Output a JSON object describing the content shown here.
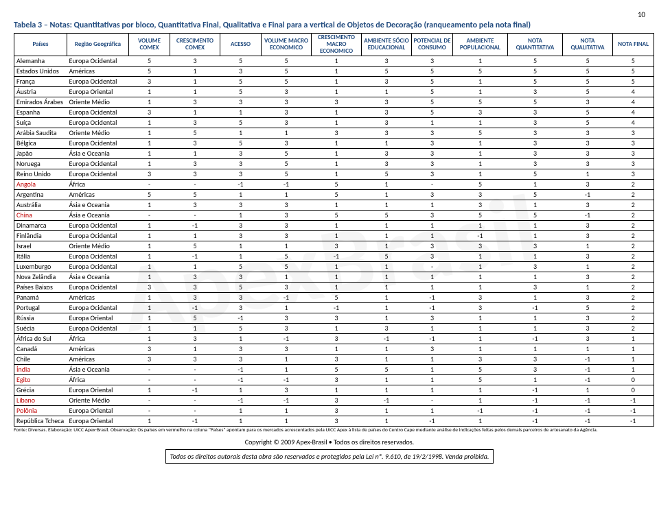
{
  "page_number": "10",
  "title": "Tabela 3 – Notas: Quantitativas por bloco, Quantitativa Final, Qualitativa e Final para a vertical de Objetos de Decoração (ranqueamento pela nota final)",
  "headers": {
    "c0": "Países",
    "c1": "Região Geográfica",
    "c2": "VOLUME COMEX",
    "c3": "CRESCIMENTO COMEX",
    "c4": "ACESSO",
    "c5": "VOLUME MACRO ECONOMICO",
    "c6": "CRESCIMENTO MACRO ECONOMICO",
    "c7": "AMBIENTE SÓCIO EDUCACIONAL",
    "c8": "POTENCIAL DE CONSUMO",
    "c9": "AMBIENTE POPULACIONAL",
    "c10": "NOTA QUANTITATIVA",
    "c11": "NOTA QUALITATIVA",
    "c12": "NOTA FINAL"
  },
  "rows": [
    {
      "red": false,
      "c": [
        "Alemanha",
        "Europa Ocidental",
        "5",
        "3",
        "5",
        "5",
        "1",
        "3",
        "3",
        "1",
        "5",
        "5",
        "5"
      ]
    },
    {
      "red": false,
      "c": [
        "Estados Unidos",
        "Américas",
        "5",
        "1",
        "3",
        "5",
        "1",
        "5",
        "5",
        "5",
        "5",
        "5",
        "5"
      ]
    },
    {
      "red": false,
      "c": [
        "França",
        "Europa Ocidental",
        "3",
        "1",
        "5",
        "5",
        "1",
        "3",
        "5",
        "1",
        "5",
        "5",
        "5"
      ]
    },
    {
      "red": false,
      "c": [
        "Áustria",
        "Europa Oriental",
        "1",
        "1",
        "5",
        "3",
        "1",
        "1",
        "5",
        "1",
        "3",
        "5",
        "4"
      ]
    },
    {
      "red": false,
      "c": [
        "Emirados Árabes",
        "Oriente Médio",
        "1",
        "3",
        "3",
        "3",
        "3",
        "3",
        "5",
        "5",
        "5",
        "3",
        "4"
      ]
    },
    {
      "red": false,
      "c": [
        "Espanha",
        "Europa Ocidental",
        "3",
        "1",
        "1",
        "3",
        "1",
        "3",
        "5",
        "3",
        "3",
        "5",
        "4"
      ]
    },
    {
      "red": false,
      "c": [
        "Suíça",
        "Europa Ocidental",
        "1",
        "3",
        "5",
        "3",
        "1",
        "3",
        "1",
        "1",
        "3",
        "5",
        "4"
      ]
    },
    {
      "red": false,
      "c": [
        "Arábia Saudita",
        "Oriente Médio",
        "1",
        "5",
        "1",
        "1",
        "3",
        "3",
        "3",
        "5",
        "3",
        "3",
        "3"
      ]
    },
    {
      "red": false,
      "c": [
        "Bélgica",
        "Europa Ocidental",
        "1",
        "3",
        "5",
        "3",
        "1",
        "1",
        "3",
        "1",
        "3",
        "3",
        "3"
      ]
    },
    {
      "red": false,
      "c": [
        "Japão",
        "Ásia e Oceania",
        "1",
        "1",
        "3",
        "5",
        "1",
        "3",
        "3",
        "1",
        "3",
        "3",
        "3"
      ]
    },
    {
      "red": false,
      "c": [
        "Noruega",
        "Europa Ocidental",
        "1",
        "3",
        "3",
        "5",
        "1",
        "3",
        "3",
        "1",
        "3",
        "3",
        "3"
      ]
    },
    {
      "red": false,
      "c": [
        "Reino Unido",
        "Europa Ocidental",
        "3",
        "3",
        "3",
        "5",
        "1",
        "5",
        "3",
        "1",
        "5",
        "1",
        "3"
      ]
    },
    {
      "red": true,
      "c": [
        "Angola",
        "África",
        "-",
        "-",
        "-1",
        "-1",
        "5",
        "1",
        "-",
        "5",
        "1",
        "3",
        "2"
      ]
    },
    {
      "red": false,
      "c": [
        "Argentina",
        "Américas",
        "5",
        "5",
        "1",
        "1",
        "5",
        "1",
        "3",
        "3",
        "5",
        "-1",
        "2"
      ]
    },
    {
      "red": false,
      "c": [
        "Austrália",
        "Ásia e Oceania",
        "1",
        "3",
        "3",
        "3",
        "1",
        "1",
        "1",
        "3",
        "1",
        "3",
        "2"
      ]
    },
    {
      "red": true,
      "c": [
        "China",
        "Ásia e Oceania",
        "-",
        "-",
        "1",
        "3",
        "5",
        "5",
        "3",
        "5",
        "5",
        "-1",
        "2"
      ]
    },
    {
      "red": false,
      "c": [
        "Dinamarca",
        "Europa Ocidental",
        "1",
        "-1",
        "3",
        "3",
        "1",
        "1",
        "1",
        "1",
        "1",
        "3",
        "2"
      ]
    },
    {
      "red": false,
      "c": [
        "Finlândia",
        "Europa Ocidental",
        "1",
        "1",
        "3",
        "3",
        "1",
        "1",
        "1",
        "-1",
        "1",
        "3",
        "2"
      ]
    },
    {
      "red": false,
      "c": [
        "Israel",
        "Oriente Médio",
        "1",
        "5",
        "1",
        "1",
        "3",
        "1",
        "3",
        "3",
        "3",
        "1",
        "2"
      ]
    },
    {
      "red": false,
      "c": [
        "Itália",
        "Europa Ocidental",
        "1",
        "-1",
        "1",
        "5",
        "-1",
        "5",
        "3",
        "1",
        "1",
        "3",
        "2"
      ]
    },
    {
      "red": false,
      "c": [
        "Luxemburgo",
        "Europa Ocidental",
        "1",
        "1",
        "5",
        "5",
        "1",
        "1",
        "-",
        "1",
        "3",
        "1",
        "2"
      ]
    },
    {
      "red": false,
      "c": [
        "Nova Zelândia",
        "Ásia e Oceania",
        "1",
        "3",
        "3",
        "1",
        "1",
        "1",
        "1",
        "1",
        "1",
        "3",
        "2"
      ]
    },
    {
      "red": false,
      "c": [
        "Países Baixos",
        "Europa Ocidental",
        "3",
        "3",
        "5",
        "3",
        "1",
        "1",
        "1",
        "1",
        "3",
        "1",
        "2"
      ]
    },
    {
      "red": false,
      "c": [
        "Panamá",
        "Américas",
        "1",
        "3",
        "3",
        "-1",
        "5",
        "1",
        "-1",
        "3",
        "1",
        "3",
        "2"
      ]
    },
    {
      "red": false,
      "c": [
        "Portugal",
        "Europa Ocidental",
        "1",
        "-1",
        "3",
        "1",
        "-1",
        "1",
        "-1",
        "3",
        "-1",
        "5",
        "2"
      ]
    },
    {
      "red": false,
      "c": [
        "Rússia",
        "Europa Oriental",
        "1",
        "5",
        "-1",
        "3",
        "3",
        "1",
        "3",
        "1",
        "1",
        "3",
        "2"
      ]
    },
    {
      "red": false,
      "c": [
        "Suécia",
        "Europa Ocidental",
        "1",
        "1",
        "5",
        "3",
        "1",
        "3",
        "1",
        "1",
        "1",
        "3",
        "2"
      ]
    },
    {
      "red": false,
      "c": [
        "África do Sul",
        "África",
        "1",
        "3",
        "1",
        "-1",
        "3",
        "-1",
        "-1",
        "1",
        "-1",
        "3",
        "1"
      ]
    },
    {
      "red": false,
      "c": [
        "Canadá",
        "Américas",
        "3",
        "1",
        "3",
        "3",
        "1",
        "1",
        "3",
        "1",
        "1",
        "1",
        "1"
      ]
    },
    {
      "red": false,
      "c": [
        "Chile",
        "Américas",
        "3",
        "3",
        "3",
        "1",
        "3",
        "1",
        "1",
        "3",
        "3",
        "-1",
        "1"
      ]
    },
    {
      "red": true,
      "c": [
        "Índia",
        "Ásia e Oceania",
        "-",
        "-",
        "-1",
        "1",
        "5",
        "5",
        "1",
        "5",
        "3",
        "-1",
        "1"
      ]
    },
    {
      "red": true,
      "c": [
        "Egito",
        "África",
        "-",
        "-",
        "-1",
        "-1",
        "3",
        "1",
        "1",
        "5",
        "1",
        "-1",
        "0"
      ]
    },
    {
      "red": false,
      "c": [
        "Grécia",
        "Europa Oriental",
        "1",
        "-1",
        "1",
        "3",
        "1",
        "1",
        "1",
        "1",
        "-1",
        "1",
        "0"
      ]
    },
    {
      "red": true,
      "c": [
        "Líbano",
        "Oriente Médio",
        "-",
        "-",
        "-1",
        "-1",
        "3",
        "-1",
        "-",
        "1",
        "-1",
        "-1",
        "-1"
      ]
    },
    {
      "red": true,
      "c": [
        "Polônia",
        "Europa Oriental",
        "-",
        "-",
        "1",
        "1",
        "3",
        "1",
        "1",
        "-1",
        "-1",
        "-1",
        "-1"
      ]
    },
    {
      "red": false,
      "c": [
        "República Tcheca",
        "Europa Oriental",
        "1",
        "-1",
        "1",
        "1",
        "3",
        "1",
        "-1",
        "1",
        "-1",
        "-1",
        "-1"
      ]
    }
  ],
  "footnote": "Fonte: Diversas. Elaboração: UICC Apex-Brasil. Observação: Os países em vermelho na coluna \"Países\" apontam para os mercados acrescentados pela UICC Apex à lista de países do Centro Cape mediante análise de indicações feitas pelos demais parceiros de artesanato da Agência.",
  "copyright": "Copyright © 2009 Apex-Brasil • Todos os direitos reservados.",
  "footer": "Todos os direitos autorais desta obra são reservados e protegidos pela Lei nº. 9.610, de 19/2/1998. Venda proibida."
}
